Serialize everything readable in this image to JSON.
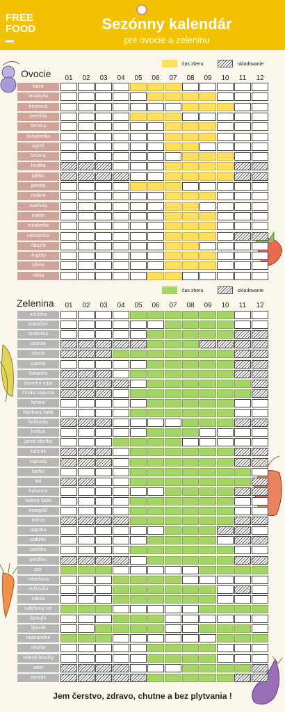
{
  "header": {
    "logo_line1": "FREE",
    "logo_line2": "FOOD",
    "title": "Sezónny kalendár",
    "subtitle": "pre ovocie a zeleninu"
  },
  "fruit": {
    "title": "Ovocie",
    "legend_harvest": "čas zberu",
    "legend_storage": "skladovanie",
    "months": [
      "01",
      "02",
      "03",
      "04",
      "05",
      "06",
      "07",
      "08",
      "09",
      "10",
      "11",
      "12"
    ],
    "harvest_color": "#ffdf5b",
    "rows": [
      {
        "name": "baza",
        "harvest": [
          5,
          6,
          7
        ],
        "storage": []
      },
      {
        "name": "broskyňa",
        "harvest": [
          6,
          7,
          8,
          9
        ],
        "storage": []
      },
      {
        "name": "brusnica",
        "harvest": [
          8,
          9,
          10
        ],
        "storage": []
      },
      {
        "name": "čerešňa",
        "harvest": [
          5,
          6,
          7
        ],
        "storage": []
      },
      {
        "name": "černica",
        "harvest": [
          7,
          8,
          9
        ],
        "storage": []
      },
      {
        "name": "čučoriedka",
        "harvest": [
          7,
          8,
          9
        ],
        "storage": []
      },
      {
        "name": "egreš",
        "harvest": [
          7,
          8
        ],
        "storage": []
      },
      {
        "name": "hrozno",
        "harvest": [
          8,
          9,
          10
        ],
        "storage": []
      },
      {
        "name": "hruška",
        "harvest": [
          7,
          8,
          9,
          10
        ],
        "storage": [
          1,
          2,
          3,
          11,
          12
        ]
      },
      {
        "name": "jablko",
        "harvest": [
          7,
          8,
          9,
          10
        ],
        "storage": [
          1,
          2,
          3,
          4,
          11,
          12
        ]
      },
      {
        "name": "jahoda",
        "harvest": [
          5,
          6,
          7
        ],
        "storage": []
      },
      {
        "name": "malina",
        "harvest": [
          7,
          8,
          9
        ],
        "storage": []
      },
      {
        "name": "marhuľa",
        "harvest": [
          7,
          8
        ],
        "storage": []
      },
      {
        "name": "melón",
        "harvest": [
          7,
          8,
          9
        ],
        "storage": []
      },
      {
        "name": "mirabelka",
        "harvest": [
          7,
          8,
          9
        ],
        "storage": []
      },
      {
        "name": "nektarinka",
        "harvest": [
          7,
          8,
          9
        ],
        "storage": [
          11,
          12
        ]
      },
      {
        "name": "ríbezľa",
        "harvest": [
          7,
          8
        ],
        "storage": []
      },
      {
        "name": "ringloty",
        "harvest": [
          7,
          8,
          9
        ],
        "storage": []
      },
      {
        "name": "slivka",
        "harvest": [
          7,
          8,
          9
        ],
        "storage": []
      },
      {
        "name": "višňa",
        "harvest": [
          6,
          7
        ],
        "storage": []
      }
    ]
  },
  "vegetables": {
    "title": "Zelenina",
    "legend_harvest": "čas zberu",
    "legend_storage": "skladovanie",
    "months": [
      "01",
      "02",
      "03",
      "04",
      "05",
      "06",
      "07",
      "08",
      "09",
      "10",
      "11",
      "12"
    ],
    "harvest_color": "#a5d467",
    "rows": [
      {
        "name": "artičoka",
        "harvest": [
          5,
          6,
          7,
          8,
          9,
          10
        ],
        "storage": []
      },
      {
        "name": "baklažán",
        "harvest": [
          7,
          8,
          9,
          10
        ],
        "storage": []
      },
      {
        "name": "brokolica",
        "harvest": [
          6,
          7,
          8,
          9,
          10
        ],
        "storage": [
          11,
          12
        ]
      },
      {
        "name": "cesnak",
        "harvest": [
          6,
          7,
          8
        ],
        "storage": [
          1,
          2,
          3,
          4,
          5,
          9,
          10,
          11,
          12
        ]
      },
      {
        "name": "cibuľa",
        "harvest": [
          4,
          5,
          6,
          7,
          8,
          9,
          10
        ],
        "storage": [
          1,
          2,
          3,
          11,
          12
        ]
      },
      {
        "name": "cuketa",
        "harvest": [
          6,
          7,
          8,
          9,
          10
        ],
        "storage": [
          11,
          12
        ]
      },
      {
        "name": "čakanka",
        "harvest": [
          5,
          6,
          7,
          8,
          9,
          10
        ],
        "storage": [
          1,
          2,
          3,
          11,
          12
        ]
      },
      {
        "name": "červená repa",
        "harvest": [
          6,
          7,
          8,
          9,
          10,
          11
        ],
        "storage": [
          1,
          2,
          3,
          4,
          12
        ]
      },
      {
        "name": "čínska kapusta",
        "harvest": [
          5,
          6,
          7,
          8,
          9,
          10,
          11
        ],
        "storage": [
          1,
          2,
          3,
          12
        ]
      },
      {
        "name": "fenikel",
        "harvest": [
          6,
          7,
          8,
          9,
          10
        ],
        "storage": []
      },
      {
        "name": "hlávkový šalát",
        "harvest": [
          5,
          6,
          7,
          8,
          9,
          10
        ],
        "storage": []
      },
      {
        "name": "hokkaido",
        "harvest": [
          8,
          9,
          10
        ],
        "storage": [
          1,
          2,
          3,
          11,
          12
        ]
      },
      {
        "name": "hrášok",
        "harvest": [
          6,
          7,
          8
        ],
        "storage": []
      },
      {
        "name": "jarná cibuľka",
        "harvest": [
          4,
          5,
          6,
          7
        ],
        "storage": []
      },
      {
        "name": "kaleráb",
        "harvest": [
          5,
          6,
          7,
          8,
          9,
          10
        ],
        "storage": [
          1,
          2,
          3,
          11,
          12
        ]
      },
      {
        "name": "kapusta",
        "harvest": [
          5,
          6,
          7,
          8,
          9,
          10
        ],
        "storage": [
          1,
          2,
          3,
          11,
          12
        ]
      },
      {
        "name": "karfiol",
        "harvest": [
          5,
          6,
          7,
          8,
          9,
          10,
          11
        ],
        "storage": []
      },
      {
        "name": "kel",
        "harvest": [
          5,
          6,
          7,
          8,
          9,
          10,
          11
        ],
        "storage": [
          1,
          2,
          12
        ]
      },
      {
        "name": "kukurica",
        "harvest": [
          7,
          8,
          9,
          10
        ],
        "storage": [
          11,
          12
        ]
      },
      {
        "name": "ľadový šalát",
        "harvest": [
          5,
          6,
          7,
          8,
          9,
          10
        ],
        "storage": []
      },
      {
        "name": "mangold",
        "harvest": [
          5,
          6,
          7,
          8,
          9,
          10
        ],
        "storage": []
      },
      {
        "name": "mrkva",
        "harvest": [
          5,
          6,
          7,
          8,
          9,
          10
        ],
        "storage": [
          1,
          2,
          3,
          4,
          11,
          12
        ]
      },
      {
        "name": "paprika",
        "harvest": [
          7,
          8,
          9
        ],
        "storage": [
          10,
          11
        ]
      },
      {
        "name": "patizón",
        "harvest": [
          6,
          7,
          8,
          9
        ],
        "storage": [
          11,
          12
        ]
      },
      {
        "name": "pažítka",
        "harvest": [
          5,
          6,
          7,
          8,
          9,
          10
        ],
        "storage": []
      },
      {
        "name": "petržlen",
        "harvest": [
          6,
          7,
          8,
          9,
          10
        ],
        "storage": [
          1,
          2,
          3,
          4,
          11,
          12
        ]
      },
      {
        "name": "pór",
        "harvest": [
          1,
          2,
          3,
          9,
          10,
          11,
          12
        ],
        "storage": []
      },
      {
        "name": "rebarbora",
        "harvest": [
          4,
          5,
          6,
          7
        ],
        "storage": []
      },
      {
        "name": "reďkovka",
        "harvest": [
          4,
          5,
          6,
          7,
          8,
          9
        ],
        "storage": [
          11
        ]
      },
      {
        "name": "rukola",
        "harvest": [
          4,
          5,
          6,
          7,
          8,
          9
        ],
        "storage": []
      },
      {
        "name": "ružičkový kel",
        "harvest": [
          1,
          2,
          3,
          9,
          10,
          11,
          12
        ],
        "storage": []
      },
      {
        "name": "špargľa",
        "harvest": [
          4,
          5,
          6
        ],
        "storage": []
      },
      {
        "name": "špenát",
        "harvest": [
          3,
          4,
          5,
          6,
          9,
          10,
          11
        ],
        "storage": []
      },
      {
        "name": "topinambur",
        "harvest": [
          1,
          2,
          3,
          10,
          11,
          12
        ],
        "storage": []
      },
      {
        "name": "uhorka",
        "harvest": [
          6,
          7,
          8,
          9
        ],
        "storage": []
      },
      {
        "name": "zelené fazuľky",
        "harvest": [
          6,
          7,
          8,
          9
        ],
        "storage": []
      },
      {
        "name": "zeler",
        "harvest": [
          8,
          9,
          10,
          11
        ],
        "storage": [
          1,
          2,
          3,
          4,
          12
        ]
      },
      {
        "name": "zemiak",
        "harvest": [
          6,
          7,
          8,
          9,
          10
        ],
        "storage": [
          1,
          2,
          3,
          4,
          5,
          11,
          12
        ]
      }
    ]
  },
  "footer": {
    "text": "Jem čerstvo, zdravo, chutne a bez plytvania !"
  }
}
